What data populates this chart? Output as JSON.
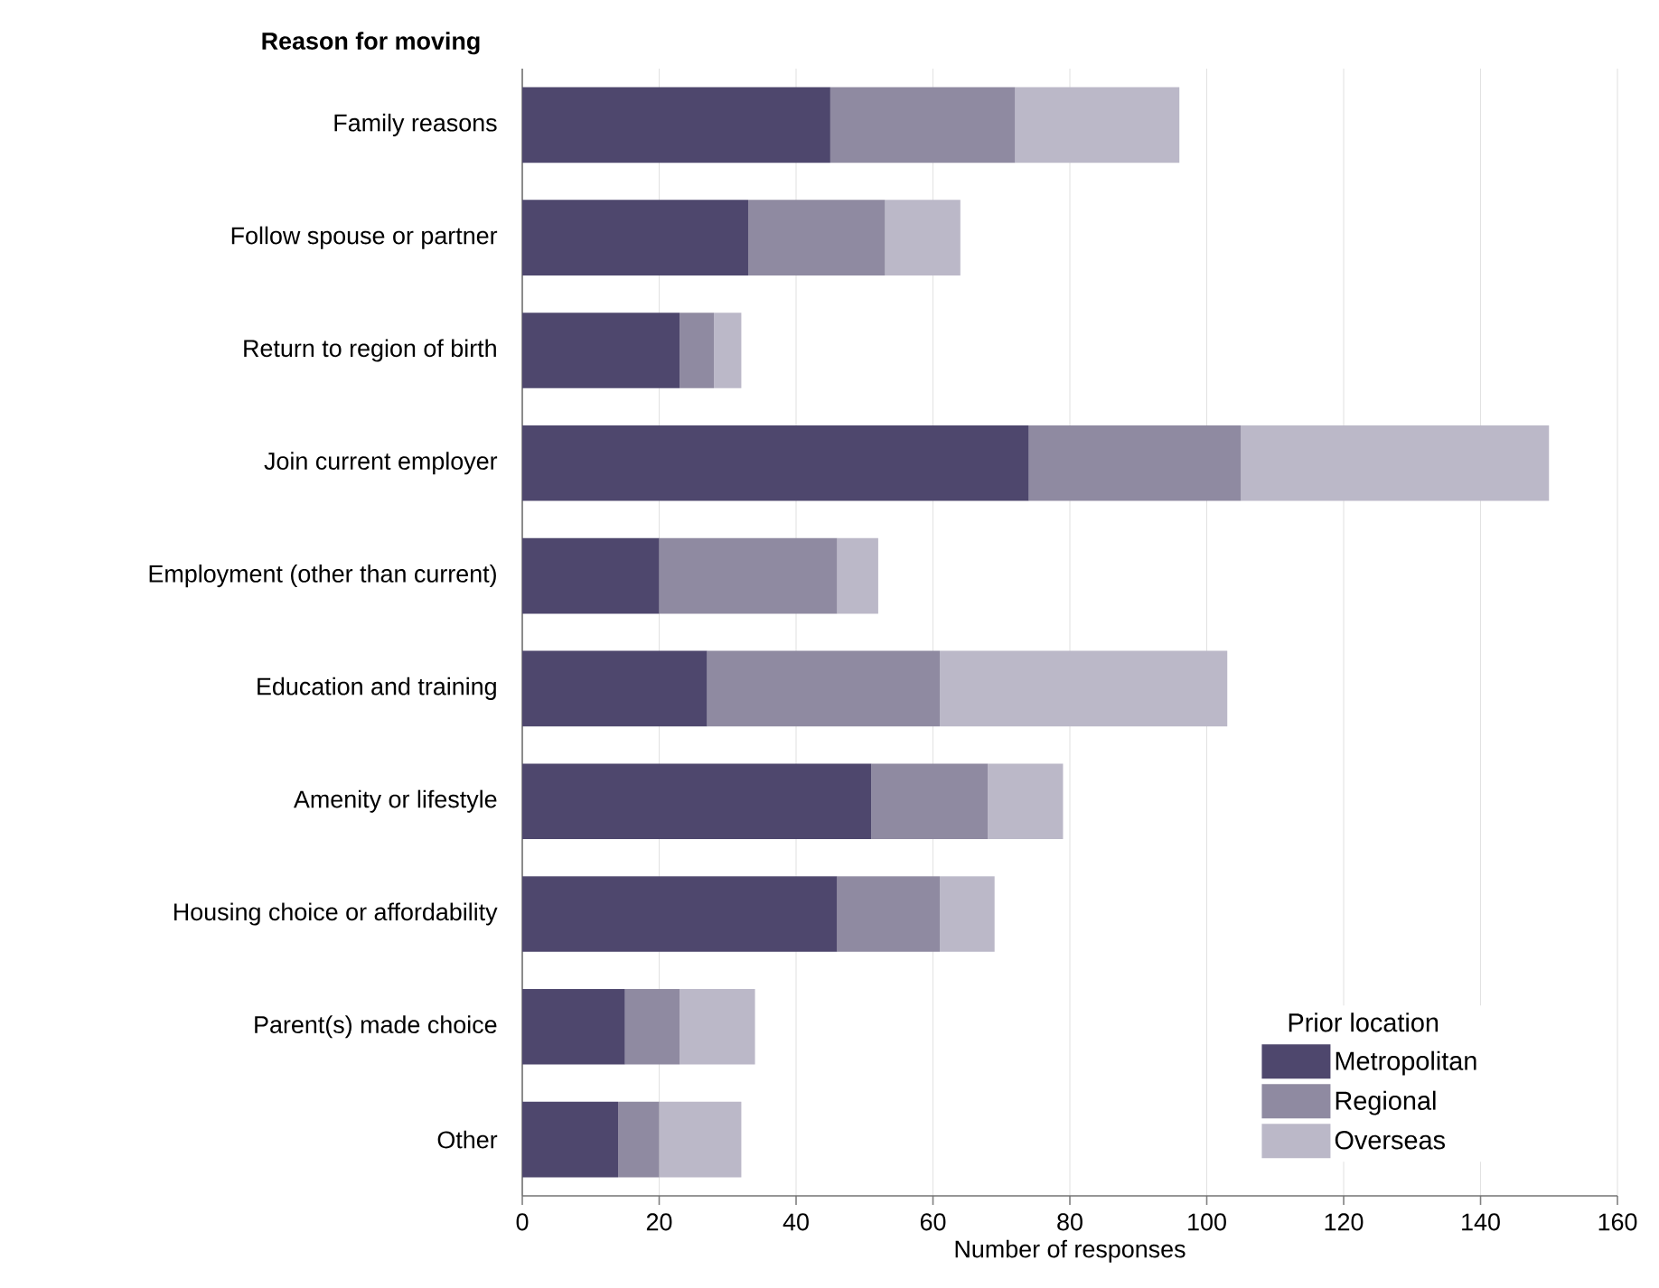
{
  "chart_data": {
    "type": "bar",
    "orientation": "horizontal",
    "stacked": true,
    "ylabel": "Reason for moving",
    "xlabel": "Number of responses",
    "legend_title": "Prior location",
    "legend": "bottom right",
    "grid": "x",
    "xlim": [
      0,
      160
    ],
    "xticks": [
      0,
      20,
      40,
      60,
      80,
      100,
      120,
      140,
      160
    ],
    "categories": [
      "Family reasons",
      "Follow spouse or partner",
      "Return to region of birth",
      "Join current employer",
      "Employment (other than current)",
      "Education and training",
      "Amenity or lifestyle",
      "Housing choice or affordability",
      "Parent(s) made choice",
      "Other"
    ],
    "series": [
      {
        "name": "Metropolitan",
        "color": "#4e476d",
        "values": [
          45,
          33,
          23,
          74,
          20,
          27,
          51,
          46,
          15,
          14
        ]
      },
      {
        "name": "Regional",
        "color": "#8f8aa1",
        "values": [
          27,
          20,
          5,
          31,
          26,
          34,
          17,
          15,
          8,
          6
        ]
      },
      {
        "name": "Overseas",
        "color": "#bbb8c8",
        "values": [
          24,
          11,
          4,
          45,
          6,
          42,
          11,
          8,
          11,
          12
        ]
      }
    ]
  }
}
